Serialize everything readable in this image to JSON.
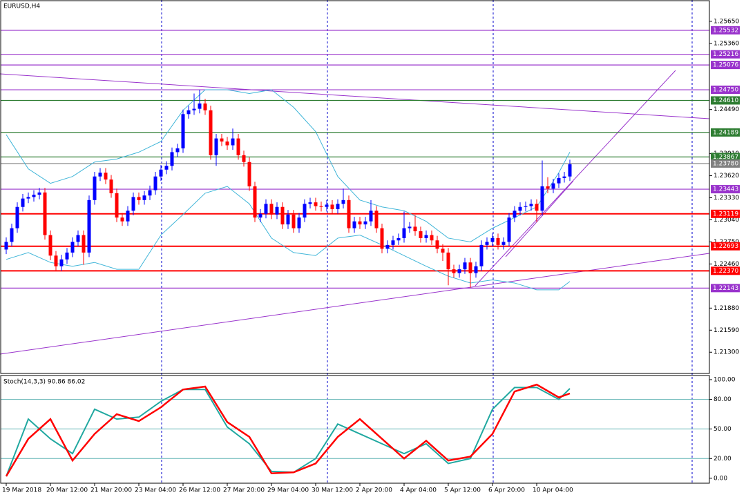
{
  "chart_data": [
    {
      "type": "candlestick",
      "title": "EURUSD,H4",
      "up_color": "#0000ff",
      "down_color": "#ff0000",
      "open": [
        1.2265,
        1.2275,
        1.2293,
        1.2321,
        1.2332,
        1.2334,
        1.2337,
        1.234,
        1.2284,
        1.2257,
        1.2243,
        1.2252,
        1.2261,
        1.2275,
        1.2284,
        1.2261,
        1.233,
        1.2361,
        1.2366,
        1.2357,
        1.2339,
        1.2307,
        1.2302,
        1.2316,
        1.2334,
        1.233,
        1.2336,
        1.2343,
        1.2361,
        1.237,
        1.2375,
        1.2393,
        1.2398,
        1.2443,
        1.2448,
        1.245,
        1.2457,
        1.2448,
        1.2389,
        1.2411,
        1.2407,
        1.2402,
        1.2411,
        1.2389,
        1.238,
        1.2348,
        1.2307,
        1.2312,
        1.2325,
        1.2311,
        1.2321,
        1.2298,
        1.2311,
        1.2293,
        1.2307,
        1.2325,
        1.2327,
        1.2322,
        1.2321,
        1.2324,
        1.2318,
        1.2325,
        1.233,
        1.2293,
        1.2302,
        1.2298,
        1.2302,
        1.2316,
        1.2293,
        1.2266,
        1.2271,
        1.2277,
        1.228,
        1.2293,
        1.2295,
        1.2289,
        1.228,
        1.2284,
        1.2277,
        1.2266,
        1.2261,
        1.2239,
        1.2234,
        1.2239,
        1.2248,
        1.2234,
        1.2243,
        1.2271,
        1.2275,
        1.228,
        1.2271,
        1.2275,
        1.2307,
        1.2316,
        1.2321,
        1.2322,
        1.2325,
        1.2316,
        1.2348,
        1.2345,
        1.2352,
        1.2359,
        1.2361
      ],
      "high": [
        1.2281,
        1.2299,
        1.2327,
        1.2338,
        1.234,
        1.2343,
        1.2346,
        1.2346,
        1.229,
        1.2263,
        1.2258,
        1.2267,
        1.2281,
        1.229,
        1.229,
        1.2336,
        1.2367,
        1.2372,
        1.2372,
        1.2363,
        1.2345,
        1.2313,
        1.2322,
        1.234,
        1.234,
        1.2342,
        1.2349,
        1.2367,
        1.2376,
        1.2381,
        1.2399,
        1.2404,
        1.2449,
        1.2454,
        1.247,
        1.2475,
        1.2463,
        1.2454,
        1.2417,
        1.2417,
        1.2413,
        1.2424,
        1.2417,
        1.2395,
        1.2386,
        1.2354,
        1.2318,
        1.2331,
        1.2331,
        1.2327,
        1.2327,
        1.2317,
        1.2317,
        1.2313,
        1.2331,
        1.2333,
        1.2333,
        1.2328,
        1.233,
        1.233,
        1.2331,
        1.2345,
        1.2336,
        1.2308,
        1.2308,
        1.2308,
        1.233,
        1.2322,
        1.2299,
        1.2277,
        1.2283,
        1.2286,
        1.2315,
        1.2301,
        1.231,
        1.2295,
        1.229,
        1.229,
        1.2283,
        1.2272,
        1.2267,
        1.2245,
        1.2245,
        1.2254,
        1.2254,
        1.2249,
        1.2277,
        1.2281,
        1.2286,
        1.2286,
        1.2281,
        1.2313,
        1.2322,
        1.2327,
        1.2328,
        1.2331,
        1.2331,
        1.2382,
        1.236,
        1.2358,
        1.2365,
        1.2367,
        1.2383
      ],
      "low": [
        1.2259,
        1.2269,
        1.2287,
        1.2315,
        1.2326,
        1.2328,
        1.2331,
        1.2278,
        1.2251,
        1.2237,
        1.2237,
        1.2246,
        1.2255,
        1.2269,
        1.2245,
        1.2255,
        1.2324,
        1.2355,
        1.2351,
        1.2333,
        1.2301,
        1.2296,
        1.2296,
        1.231,
        1.2324,
        1.2324,
        1.233,
        1.2337,
        1.2355,
        1.2364,
        1.2369,
        1.2387,
        1.2392,
        1.2437,
        1.2442,
        1.2444,
        1.2442,
        1.2383,
        1.2375,
        1.2401,
        1.2396,
        1.2396,
        1.2383,
        1.2374,
        1.2342,
        1.2301,
        1.2301,
        1.2306,
        1.2305,
        1.2305,
        1.2292,
        1.2292,
        1.2287,
        1.2287,
        1.2301,
        1.2319,
        1.2316,
        1.2315,
        1.2315,
        1.2312,
        1.2312,
        1.2319,
        1.2287,
        1.2287,
        1.2292,
        1.2292,
        1.2296,
        1.2287,
        1.226,
        1.226,
        1.2265,
        1.2271,
        1.2274,
        1.2287,
        1.2283,
        1.2274,
        1.2274,
        1.2271,
        1.226,
        1.225,
        1.2218,
        1.2228,
        1.2228,
        1.2233,
        1.2215,
        1.2228,
        1.2237,
        1.2265,
        1.2269,
        1.2265,
        1.2265,
        1.2269,
        1.2301,
        1.231,
        1.2315,
        1.2316,
        1.2301,
        1.231,
        1.2339,
        1.2339,
        1.2346,
        1.2353,
        1.2355
      ],
      "close": [
        1.2275,
        1.2293,
        1.2321,
        1.2332,
        1.2334,
        1.2337,
        1.234,
        1.2284,
        1.2257,
        1.2243,
        1.2252,
        1.2261,
        1.2275,
        1.2284,
        1.2261,
        1.233,
        1.2361,
        1.2366,
        1.2357,
        1.2339,
        1.2307,
        1.2302,
        1.2316,
        1.2334,
        1.233,
        1.2336,
        1.2343,
        1.2361,
        1.237,
        1.2375,
        1.2393,
        1.2398,
        1.2443,
        1.2448,
        1.245,
        1.2457,
        1.2448,
        1.2389,
        1.2411,
        1.2407,
        1.2402,
        1.2411,
        1.2389,
        1.238,
        1.2348,
        1.2307,
        1.2312,
        1.2325,
        1.2311,
        1.2321,
        1.2298,
        1.2311,
        1.2293,
        1.2307,
        1.2325,
        1.2327,
        1.2322,
        1.2321,
        1.2324,
        1.2318,
        1.2325,
        1.233,
        1.2293,
        1.2302,
        1.2298,
        1.2302,
        1.2316,
        1.2293,
        1.2266,
        1.2271,
        1.2277,
        1.228,
        1.2293,
        1.2295,
        1.2289,
        1.228,
        1.2284,
        1.2277,
        1.2266,
        1.2261,
        1.2239,
        1.2234,
        1.2239,
        1.2248,
        1.2234,
        1.2243,
        1.2271,
        1.2275,
        1.228,
        1.2271,
        1.2275,
        1.2307,
        1.2316,
        1.2321,
        1.2322,
        1.2325,
        1.2316,
        1.2348,
        1.2345,
        1.2352,
        1.2359,
        1.2361,
        1.2377
      ],
      "bands": {
        "x": [
          0,
          4,
          8,
          12,
          16,
          20,
          24,
          28,
          32,
          36,
          40,
          44,
          48,
          52,
          56,
          60,
          64,
          68,
          72,
          76,
          80,
          84,
          88,
          92,
          96,
          100,
          102
        ],
        "series": [
          {
            "color": "#3fb5d8",
            "values": [
              1.2416,
              1.2371,
              1.2352,
              1.2361,
              1.238,
              1.2384,
              1.2393,
              1.2407,
              1.2448,
              1.2475,
              1.2475,
              1.247,
              1.2475,
              1.2452,
              1.242,
              1.2361,
              1.233,
              1.2321,
              1.2316,
              1.2302,
              1.228,
              1.2275,
              1.2293,
              1.2307,
              1.2321,
              1.2366,
              1.2393
            ]
          },
          {
            "color": "#3fb5d8",
            "values": [
              1.2252,
              1.2261,
              1.2248,
              1.2243,
              1.2248,
              1.2239,
              1.2239,
              1.2284,
              1.2311,
              1.2339,
              1.2348,
              1.2325,
              1.228,
              1.2261,
              1.2257,
              1.228,
              1.2284,
              1.2271,
              1.2257,
              1.2243,
              1.223,
              1.2221,
              1.2225,
              1.2221,
              1.2212,
              1.2212,
              1.2223
            ]
          }
        ]
      },
      "levels": [
        {
          "value": 1.25532,
          "label": "1.25532",
          "color": "#9933cc"
        },
        {
          "value": 1.25216,
          "label": "1.25216",
          "color": "#9933cc"
        },
        {
          "value": 1.25076,
          "label": "1.25076",
          "color": "#9933cc"
        },
        {
          "value": 1.2475,
          "label": "1.24750",
          "color": "#9933cc"
        },
        {
          "value": 1.2461,
          "label": "1.24610",
          "color": "#2e7d32"
        },
        {
          "value": 1.24189,
          "label": "1.24189",
          "color": "#2e7d32"
        },
        {
          "value": 1.23867,
          "label": "1.23867",
          "color": "#2e7d32"
        },
        {
          "value": 1.2378,
          "label": "1.23780",
          "color": "#808080"
        },
        {
          "value": 1.23443,
          "label": "1.23443",
          "color": "#9933cc"
        },
        {
          "value": 1.23119,
          "label": "1.23119",
          "color": "#ff0000"
        },
        {
          "value": 1.22693,
          "label": "1.22693",
          "color": "#ff0000"
        },
        {
          "value": 1.2237,
          "label": "1.22370",
          "color": "#ff0000"
        },
        {
          "value": 1.22143,
          "label": "1.22143",
          "color": "#9933cc"
        }
      ],
      "xlim": [
        -1,
        127
      ],
      "xticks": [
        {
          "value": 0,
          "label": "19 Mar 2018"
        },
        {
          "value": 8,
          "label": "20 Mar 12:00"
        },
        {
          "value": 16,
          "label": "21 Mar 20:00"
        },
        {
          "value": 24,
          "label": "23 Mar 04:00"
        },
        {
          "value": 32,
          "label": "26 Mar 12:00"
        },
        {
          "value": 40,
          "label": "27 Mar 20:00"
        },
        {
          "value": 48,
          "label": "29 Mar 04:00"
        },
        {
          "value": 56,
          "label": "30 Mar 12:00"
        },
        {
          "value": 64,
          "label": "2 Apr 20:00"
        },
        {
          "value": 72,
          "label": "4 Apr 04:00"
        },
        {
          "value": 80,
          "label": "5 Apr 12:00"
        },
        {
          "value": 88,
          "label": "6 Apr 20:00"
        },
        {
          "value": 96,
          "label": "10 Apr 04:00"
        }
      ],
      "ylim": [
        1.2103,
        1.2593
      ],
      "yticks": [
        {
          "value": 1.2565,
          "label": "1.25650"
        },
        {
          "value": 1.2536,
          "label": "1.25360"
        },
        {
          "value": 1.2449,
          "label": "1.24490"
        },
        {
          "value": 1.2391,
          "label": "1.23910"
        },
        {
          "value": 1.2362,
          "label": "1.23620"
        },
        {
          "value": 1.2333,
          "label": "1.23330"
        },
        {
          "value": 1.2304,
          "label": "1.23040"
        },
        {
          "value": 1.2275,
          "label": "1.22750"
        },
        {
          "value": 1.2246,
          "label": "1.22460"
        },
        {
          "value": 1.2188,
          "label": "1.21880"
        },
        {
          "value": 1.2159,
          "label": "1.21590"
        },
        {
          "value": 1.213,
          "label": "1.21300"
        }
      ]
    },
    {
      "type": "line",
      "title": "Stoch(14,3,3) 90.86 86.02",
      "x": [
        0,
        4,
        8,
        12,
        16,
        20,
        24,
        28,
        32,
        36,
        40,
        44,
        48,
        52,
        56,
        60,
        64,
        68,
        72,
        76,
        80,
        84,
        88,
        92,
        96,
        100,
        102
      ],
      "series": [
        {
          "color": "#20a8a0",
          "values": [
            2,
            60,
            40,
            25,
            70,
            60,
            62,
            78,
            90,
            90,
            52,
            35,
            7,
            6,
            20,
            55,
            45,
            35,
            25,
            35,
            15,
            20,
            70,
            92,
            92,
            80,
            91
          ]
        },
        {
          "color": "#ff0000",
          "values": [
            2,
            40,
            60,
            18,
            45,
            65,
            58,
            72,
            90,
            93,
            57,
            42,
            5,
            6,
            15,
            42,
            60,
            40,
            20,
            38,
            18,
            22,
            45,
            88,
            95,
            82,
            86
          ]
        }
      ],
      "ylim": [
        -5,
        103.5
      ],
      "yticks": [
        {
          "value": 100,
          "label": "100.00"
        },
        {
          "value": 80,
          "label": "80.00"
        },
        {
          "value": 50,
          "label": "50.00"
        },
        {
          "value": 20,
          "label": "20.00"
        },
        {
          "value": 0,
          "label": "0.00"
        }
      ],
      "levels": [
        80,
        50,
        20
      ],
      "level_color": "#5fb3b3"
    }
  ]
}
